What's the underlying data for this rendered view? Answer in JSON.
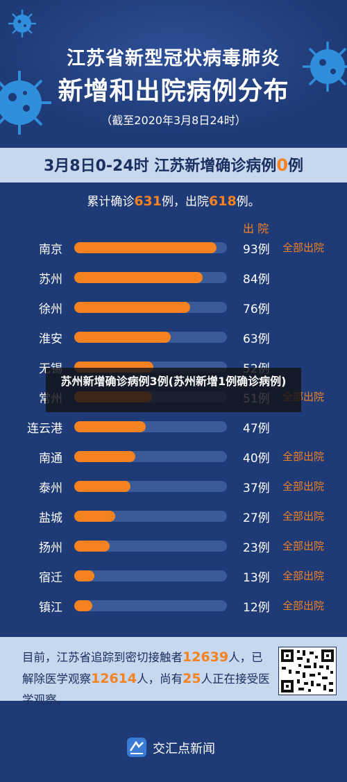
{
  "header": {
    "title_line1": "江苏省新型冠状病毒肺炎",
    "title_line2": "新增和出院病例分布",
    "subtitle": "（截至2020年3月8日24时）"
  },
  "band": {
    "prefix": "3月8日0-24时 江苏新增确诊病例",
    "new_count": "0",
    "suffix": "例"
  },
  "summary": {
    "part1": "累计确诊",
    "confirmed": "631",
    "part2": "例，出院",
    "discharged": "618",
    "part3": "例。"
  },
  "discharge_column_label": "出 院",
  "chart_data": {
    "type": "bar",
    "orientation": "horizontal",
    "categories": [
      "南京",
      "苏州",
      "徐州",
      "淮安",
      "无锡",
      "常州",
      "连云港",
      "南通",
      "泰州",
      "盐城",
      "扬州",
      "宿迁",
      "镇江"
    ],
    "values": [
      93,
      84,
      76,
      63,
      52,
      51,
      47,
      40,
      37,
      27,
      23,
      13,
      12
    ],
    "value_labels": [
      "93例",
      "84例",
      "76例",
      "63例",
      "52例",
      "51例",
      "47例",
      "40例",
      "37例",
      "27例",
      "23例",
      "13例",
      "12例"
    ],
    "discharge_status": [
      "全部出院",
      "",
      "",
      "",
      "",
      "全部出院",
      "",
      "全部出院",
      "全部出院",
      "全部出院",
      "全部出院",
      "全部出院",
      "全部出院"
    ],
    "xlim": [
      0,
      100
    ],
    "bar_color": "#f58220",
    "track_color": "#3a5a98"
  },
  "footer": {
    "line1a": "目前，江苏省追踪到密切接触者",
    "contacts": "12639",
    "line1b": "人，",
    "line2a": "已解除医学观察",
    "released": "12614",
    "line2b": "人，尚有",
    "remaining": "25",
    "line2c": "人正在接受医学观察。"
  },
  "brand": {
    "name": "交汇点新闻"
  },
  "overlay": {
    "text": "苏州新增确诊病例3例(苏州新增1例确诊病例)"
  },
  "colors": {
    "background": "#1f3b77",
    "accent": "#f58220",
    "band": "#c6d7ee"
  }
}
